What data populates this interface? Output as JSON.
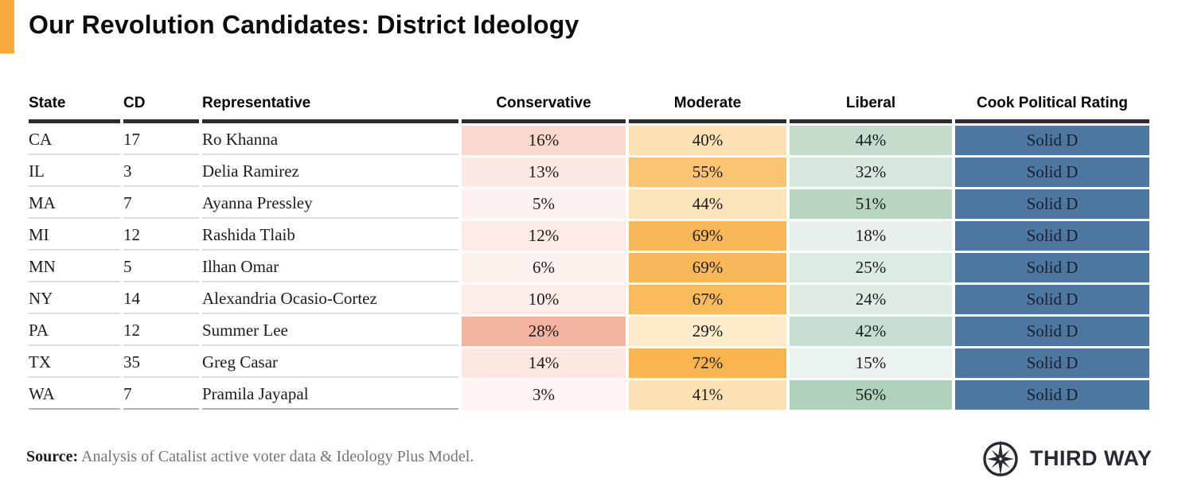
{
  "title": "Our Revolution Candidates: District Ideology",
  "accent_color": "#f6a83c",
  "rating_color": "#4e779f",
  "table": {
    "headers": [
      "State",
      "CD",
      "Representative",
      "Conservative",
      "Moderate",
      "Liberal",
      "Cook Political Rating"
    ],
    "rows": [
      {
        "state": "CA",
        "cd": "17",
        "rep": "Ro Khanna",
        "conservative": "16%",
        "moderate": "40%",
        "liberal": "44%",
        "rating": "Solid D",
        "colors": {
          "conservative": "#f8d7cc",
          "moderate": "#fce1b3",
          "liberal": "#c3dccc",
          "rating": "#4e779f"
        }
      },
      {
        "state": "IL",
        "cd": "3",
        "rep": "Delia Ramirez",
        "conservative": "13%",
        "moderate": "55%",
        "liberal": "32%",
        "rating": "Solid D",
        "colors": {
          "conservative": "#fce9e3",
          "moderate": "#fac472",
          "liberal": "#d7e7dd",
          "rating": "#4e779f"
        }
      },
      {
        "state": "MA",
        "cd": "7",
        "rep": "Ayanna Pressley",
        "conservative": "5%",
        "moderate": "44%",
        "liberal": "51%",
        "rating": "Solid D",
        "colors": {
          "conservative": "#fdf2ef",
          "moderate": "#fbe3ba",
          "liberal": "#b6d6c2",
          "rating": "#4e779f"
        }
      },
      {
        "state": "MI",
        "cd": "12",
        "rep": "Rashida Tlaib",
        "conservative": "12%",
        "moderate": "69%",
        "liberal": "18%",
        "rating": "Solid D",
        "colors": {
          "conservative": "#fceae4",
          "moderate": "#f9b857",
          "liberal": "#e7f0ea",
          "rating": "#4e779f"
        }
      },
      {
        "state": "MN",
        "cd": "5",
        "rep": "Ilhan Omar",
        "conservative": "6%",
        "moderate": "69%",
        "liberal": "25%",
        "rating": "Solid D",
        "colors": {
          "conservative": "#fdf1ed",
          "moderate": "#f9b857",
          "liberal": "#dcebe1",
          "rating": "#4e779f"
        }
      },
      {
        "state": "NY",
        "cd": "14",
        "rep": "Alexandria Ocasio-Cortez",
        "conservative": "10%",
        "moderate": "67%",
        "liberal": "24%",
        "rating": "Solid D",
        "colors": {
          "conservative": "#fdece7",
          "moderate": "#f9ba5c",
          "liberal": "#deece3",
          "rating": "#4e779f"
        }
      },
      {
        "state": "PA",
        "cd": "12",
        "rep": "Summer Lee",
        "conservative": "28%",
        "moderate": "29%",
        "liberal": "42%",
        "rating": "Solid D",
        "colors": {
          "conservative": "#f2b3a0",
          "moderate": "#fdebcb",
          "liberal": "#c6ded0",
          "rating": "#4e779f"
        }
      },
      {
        "state": "TX",
        "cd": "35",
        "rep": "Greg Casar",
        "conservative": "14%",
        "moderate": "72%",
        "liberal": "15%",
        "rating": "Solid D",
        "colors": {
          "conservative": "#fce8e1",
          "moderate": "#f8b44f",
          "liberal": "#eaf2ed",
          "rating": "#4e779f"
        }
      },
      {
        "state": "WA",
        "cd": "7",
        "rep": "Pramila Jayapal",
        "conservative": "3%",
        "moderate": "41%",
        "liberal": "56%",
        "rating": "Solid D",
        "colors": {
          "conservative": "#fdf3f1",
          "moderate": "#fce1b5",
          "liberal": "#afd1bc",
          "rating": "#4e779f"
        }
      }
    ]
  },
  "footer": {
    "source_label": "Source:",
    "source_text": " Analysis of Catalist active voter data & Ideology Plus Model.",
    "brand": "THIRD WAY"
  },
  "chart_data": {
    "type": "table",
    "title": "Our Revolution Candidates: District Ideology",
    "columns": [
      "State",
      "CD",
      "Representative",
      "Conservative",
      "Moderate",
      "Liberal",
      "Cook Political Rating"
    ],
    "rows": [
      [
        "CA",
        17,
        "Ro Khanna",
        16,
        40,
        44,
        "Solid D"
      ],
      [
        "IL",
        3,
        "Delia Ramirez",
        13,
        55,
        32,
        "Solid D"
      ],
      [
        "MA",
        7,
        "Ayanna Pressley",
        5,
        44,
        51,
        "Solid D"
      ],
      [
        "MI",
        12,
        "Rashida Tlaib",
        12,
        69,
        18,
        "Solid D"
      ],
      [
        "MN",
        5,
        "Ilhan Omar",
        6,
        69,
        25,
        "Solid D"
      ],
      [
        "NY",
        14,
        "Alexandria Ocasio-Cortez",
        10,
        67,
        24,
        "Solid D"
      ],
      [
        "PA",
        12,
        "Summer Lee",
        28,
        29,
        42,
        "Solid D"
      ],
      [
        "TX",
        35,
        "Greg Casar",
        14,
        72,
        15,
        "Solid D"
      ],
      [
        "WA",
        7,
        "Pramila Jayapal",
        3,
        41,
        56,
        "Solid D"
      ]
    ],
    "value_units": "percent of district",
    "layout": "heatmap table: Conservative column shaded red by value, Moderate shaded orange, Liberal shaded green, Cook Political Rating cells solid steel blue",
    "source": "Analysis of Catalist active voter data & Ideology Plus Model."
  }
}
